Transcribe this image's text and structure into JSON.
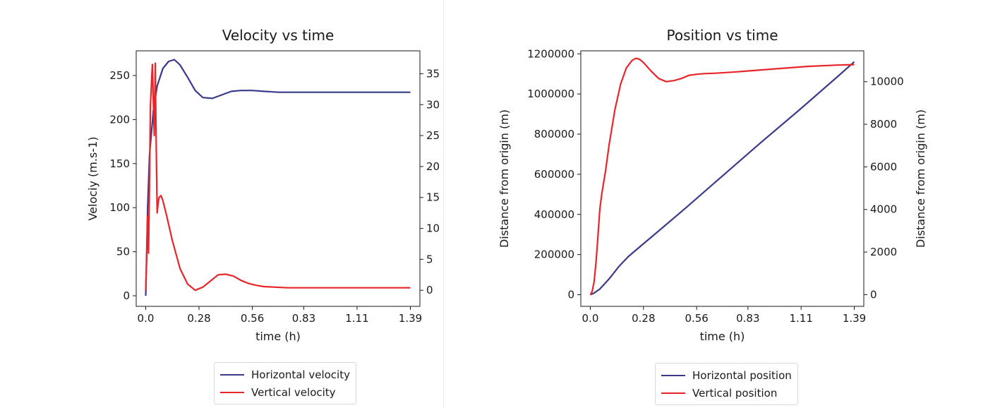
{
  "chart_data": [
    {
      "type": "line",
      "title": "Velocity vs time",
      "xlabel": "time (h)",
      "ylabel": "Velociy (m.s-1)",
      "y2label": "Velociy (m.s-1)",
      "xlim": [
        -0.05,
        1.44
      ],
      "ylim": [
        -12,
        278
      ],
      "y2lim": [
        -2.6,
        38.7
      ],
      "xticks": [
        0.0,
        0.28,
        0.56,
        0.83,
        1.11,
        1.39
      ],
      "xtick_labels": [
        "0.0",
        "0.28",
        "0.56",
        "0.83",
        "1.11",
        "1.39"
      ],
      "yticks": [
        0,
        50,
        100,
        150,
        200,
        250
      ],
      "y2ticks": [
        0,
        5,
        10,
        15,
        20,
        25,
        30,
        35
      ],
      "grid": false,
      "legend_placement": "bottom-center",
      "series": [
        {
          "name": "Horizontal velocity",
          "axis": "left",
          "color": "#3a3a8c",
          "x": [
            0.0,
            0.01,
            0.02,
            0.04,
            0.06,
            0.09,
            0.12,
            0.15,
            0.18,
            0.22,
            0.26,
            0.3,
            0.35,
            0.4,
            0.45,
            0.5,
            0.56,
            0.62,
            0.7,
            0.8,
            0.95,
            1.1,
            1.25,
            1.39
          ],
          "y": [
            0,
            100,
            160,
            210,
            238,
            258,
            266,
            268,
            262,
            248,
            233,
            225,
            224,
            228,
            232,
            233,
            233,
            232,
            231,
            231,
            231,
            231,
            231,
            231
          ]
        },
        {
          "name": "Vertical velocity",
          "axis": "right",
          "color": "#e8262a",
          "x": [
            0.0,
            0.005,
            0.01,
            0.015,
            0.02,
            0.025,
            0.035,
            0.045,
            0.05,
            0.055,
            0.06,
            0.065,
            0.07,
            0.08,
            0.09,
            0.11,
            0.14,
            0.18,
            0.22,
            0.26,
            0.3,
            0.34,
            0.38,
            0.42,
            0.46,
            0.5,
            0.54,
            0.58,
            0.62,
            0.68,
            0.75,
            0.85,
            1.0,
            1.2,
            1.39
          ],
          "y": [
            0.0,
            5.0,
            12.0,
            6.0,
            18.0,
            30.0,
            36.5,
            25.0,
            36.7,
            24.0,
            12.5,
            14.0,
            15.0,
            15.3,
            14.5,
            12.0,
            8.0,
            3.5,
            1.0,
            0.0,
            0.5,
            1.5,
            2.5,
            2.6,
            2.3,
            1.6,
            1.1,
            0.8,
            0.6,
            0.5,
            0.4,
            0.4,
            0.4,
            0.4,
            0.4
          ]
        }
      ]
    },
    {
      "type": "line",
      "title": "Position vs time",
      "xlabel": "time (h)",
      "ylabel": "Distance from origin (m)",
      "y2label": "Distance from origin (m)",
      "xlim": [
        -0.05,
        1.44
      ],
      "ylim": [
        -58000,
        1215000
      ],
      "y2lim": [
        -550,
        11450
      ],
      "xticks": [
        0.0,
        0.28,
        0.56,
        0.83,
        1.11,
        1.39
      ],
      "xtick_labels": [
        "0.0",
        "0.28",
        "0.56",
        "0.83",
        "1.11",
        "1.39"
      ],
      "yticks": [
        0,
        200000,
        400000,
        600000,
        800000,
        1000000,
        1200000
      ],
      "y2ticks": [
        0,
        2000,
        4000,
        6000,
        8000,
        10000
      ],
      "grid": false,
      "legend_placement": "bottom-center",
      "series": [
        {
          "name": "Horizontal position",
          "axis": "left",
          "color": "#3a3a8c",
          "x": [
            0.0,
            0.02,
            0.05,
            0.1,
            0.15,
            0.2,
            0.25,
            0.35,
            0.5,
            0.7,
            0.9,
            1.1,
            1.3,
            1.39
          ],
          "y": [
            0,
            8000,
            28000,
            80000,
            140000,
            190000,
            230000,
            310000,
            430000,
            595000,
            760000,
            920000,
            1085000,
            1160000
          ]
        },
        {
          "name": "Vertical position",
          "axis": "right",
          "color": "#e8262a",
          "x": [
            0.0,
            0.01,
            0.02,
            0.03,
            0.04,
            0.05,
            0.06,
            0.08,
            0.1,
            0.13,
            0.16,
            0.19,
            0.22,
            0.24,
            0.26,
            0.28,
            0.32,
            0.36,
            0.4,
            0.44,
            0.48,
            0.52,
            0.56,
            0.6,
            0.66,
            0.75,
            0.85,
            1.0,
            1.15,
            1.3,
            1.39
          ],
          "y": [
            0,
            150,
            600,
            1500,
            2700,
            4000,
            4700,
            5800,
            7100,
            8700,
            9900,
            10650,
            11000,
            11100,
            11050,
            10900,
            10500,
            10150,
            10000,
            10050,
            10150,
            10300,
            10350,
            10380,
            10400,
            10450,
            10520,
            10620,
            10720,
            10780,
            10800
          ]
        }
      ]
    }
  ]
}
